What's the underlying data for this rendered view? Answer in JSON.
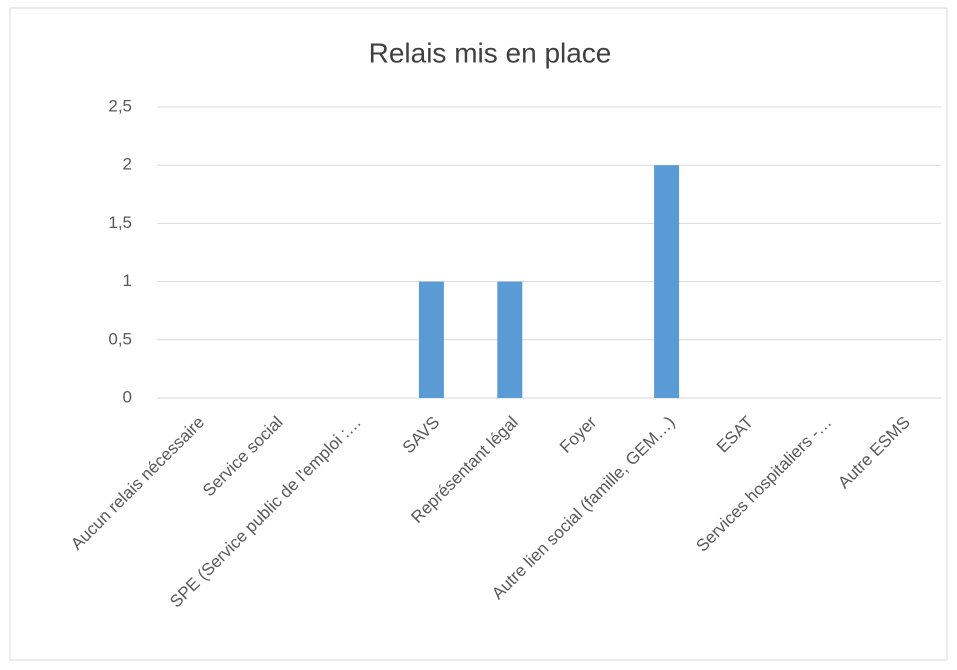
{
  "chart_data": {
    "type": "bar",
    "title": "Relais mis en place",
    "categories": [
      "Aucun relais nécessaire",
      "Service social",
      "SPE (Service public de l'emploi :…",
      "SAVS",
      "Représentant légal",
      "Foyer",
      "Autre lien social (famille, GEM…)",
      "ESAT",
      "Services hospitaliers -…",
      "Autre ESMS"
    ],
    "values": [
      0,
      0,
      0,
      1,
      1,
      0,
      2,
      0,
      0,
      0
    ],
    "color": "#5b9bd5",
    "ylim": [
      0,
      2.5
    ],
    "yticks": [
      0,
      {
        "value": 0.5,
        "label": "0,5"
      },
      1,
      {
        "value": 1.5,
        "label": "1,5"
      },
      2,
      {
        "value": 2.5,
        "label": "2,5"
      }
    ],
    "grid": true
  }
}
